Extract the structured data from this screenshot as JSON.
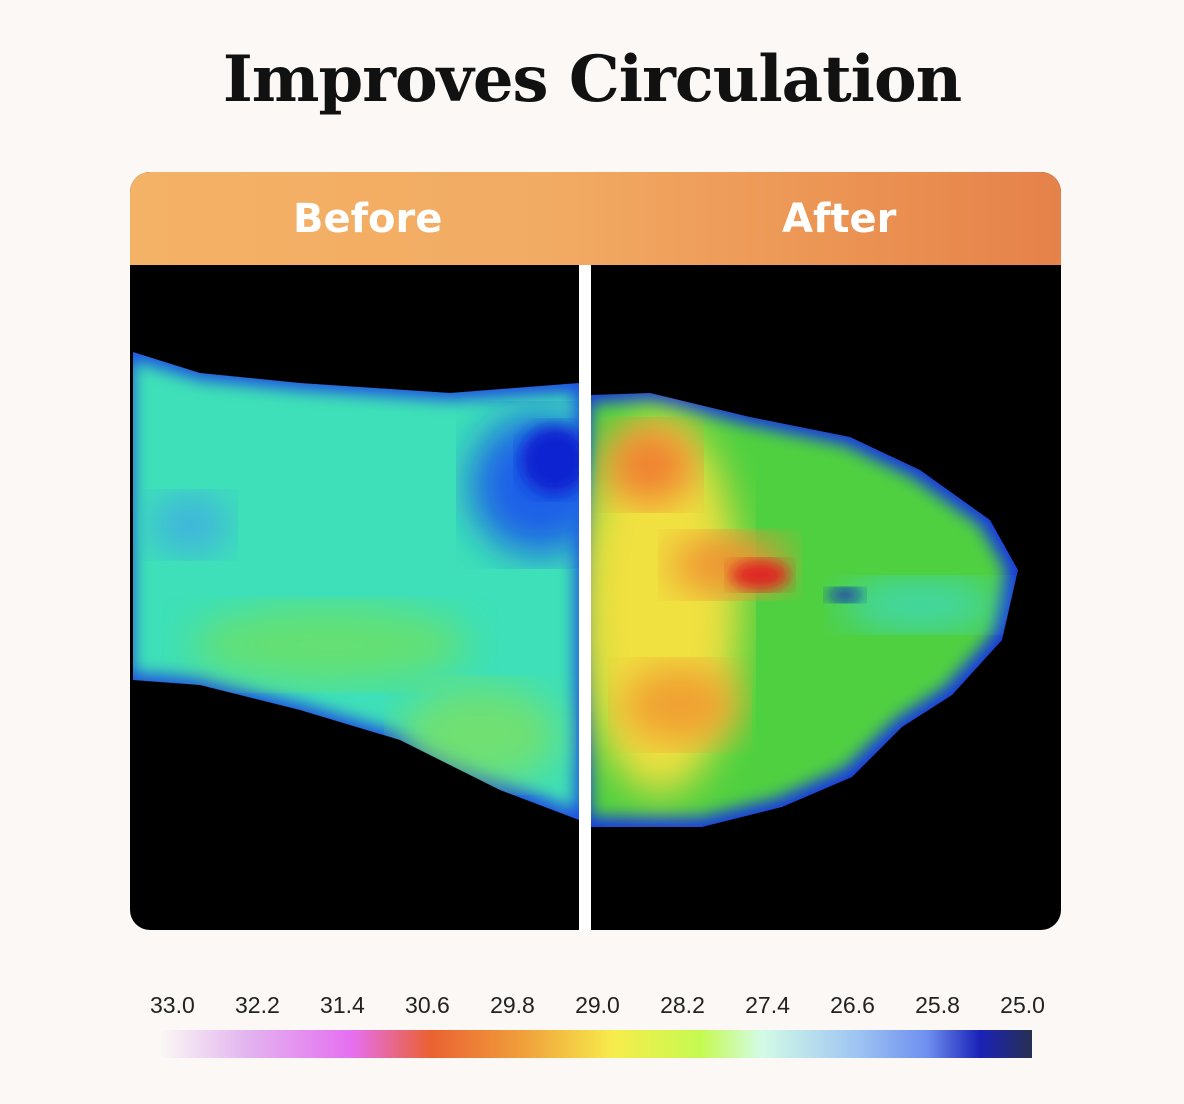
{
  "title": "Improves Circulation",
  "panels": {
    "before_label": "Before",
    "after_label": "After"
  },
  "colors": {
    "header_start": "#f4b266",
    "header_end": "#e5814a",
    "background": "#fbf8f5"
  },
  "scale": {
    "labels": [
      "33.0",
      "32.2",
      "31.4",
      "30.6",
      "29.8",
      "29.0",
      "28.2",
      "27.4",
      "26.6",
      "25.8",
      "25.0"
    ]
  }
}
